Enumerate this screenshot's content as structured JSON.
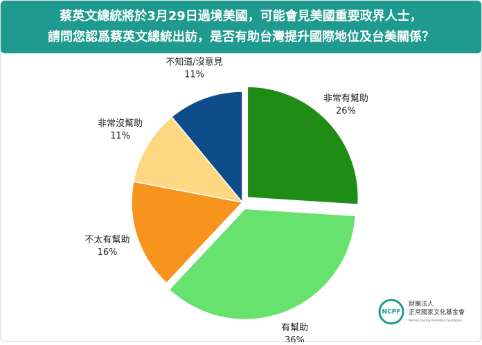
{
  "chart_data": {
    "type": "pie",
    "title": [
      "蔡英文總統將於3月29日過境美國，可能會見美國重要政界人士，",
      "請問您認爲蔡英文總統出訪，是否有助台灣提升國際地位及台美關係？"
    ],
    "categories": [
      "非常有幫助",
      "有幫助",
      "不太有幫助",
      "非常沒幫助",
      "不知道/沒意見"
    ],
    "values": [
      26,
      36,
      16,
      11,
      11
    ],
    "value_labels": [
      "26%",
      "36%",
      "16%",
      "11%",
      "11%"
    ],
    "colors": [
      "#1f8c16",
      "#68e26f",
      "#f7941d",
      "#fdd782",
      "#0f4c8a"
    ],
    "explode": [
      true,
      true,
      false,
      false,
      false
    ]
  },
  "logo": {
    "mark": "NCPF",
    "line1": "財團法人",
    "line2": "正常國家文化基金會",
    "line3": "Normal Country Promotion Foundation"
  }
}
